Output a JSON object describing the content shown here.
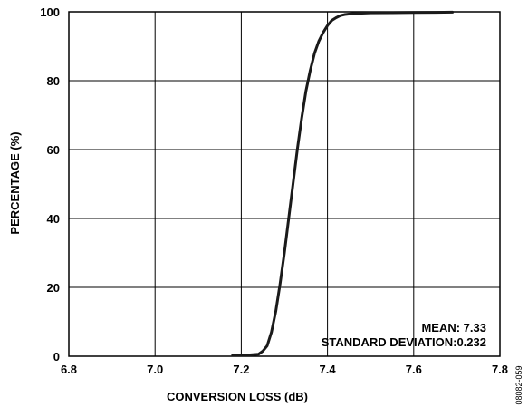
{
  "chart_data": {
    "type": "line",
    "title": "",
    "xlabel": "CONVERSION LOSS (dB)",
    "ylabel": "PERCENTAGE (%)",
    "xlim": [
      6.8,
      7.8
    ],
    "ylim": [
      0,
      100
    ],
    "x_ticks": [
      "6.8",
      "7.0",
      "7.2",
      "7.4",
      "7.6",
      "7.8"
    ],
    "y_ticks": [
      "0",
      "20",
      "40",
      "60",
      "80",
      "100"
    ],
    "grid": true,
    "legend": "none",
    "line_color": "#1a1a1a",
    "series": [
      {
        "x": [
          7.18,
          7.22,
          7.24,
          7.25,
          7.26,
          7.27,
          7.28,
          7.29,
          7.3,
          7.31,
          7.32,
          7.33,
          7.34,
          7.35,
          7.36,
          7.37,
          7.38,
          7.39,
          7.4,
          7.41,
          7.42,
          7.43,
          7.44,
          7.46,
          7.48,
          7.5,
          7.55,
          7.6,
          7.65,
          7.69
        ],
        "y": [
          0.4,
          0.4,
          0.6,
          1.5,
          3,
          7,
          13,
          21,
          30,
          40,
          50,
          60,
          69,
          77,
          83,
          88,
          91.5,
          94,
          96,
          97.5,
          98.3,
          98.9,
          99.2,
          99.5,
          99.6,
          99.7,
          99.75,
          99.8,
          99.85,
          99.9
        ]
      }
    ],
    "annotations": [
      "MEAN: 7.33",
      "STANDARD DEVIATION:0.232"
    ]
  },
  "figure_id": "08082-059"
}
